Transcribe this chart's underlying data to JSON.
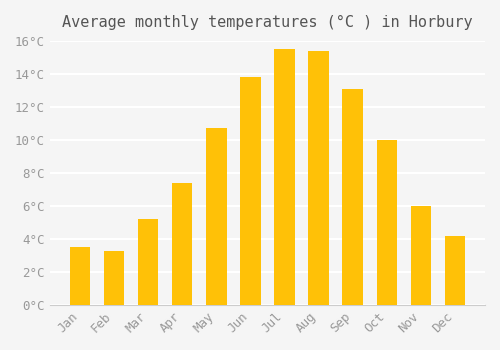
{
  "title": "Average monthly temperatures (°C ) in Horbury",
  "months": [
    "Jan",
    "Feb",
    "Mar",
    "Apr",
    "May",
    "Jun",
    "Jul",
    "Aug",
    "Sep",
    "Oct",
    "Nov",
    "Dec"
  ],
  "values": [
    3.5,
    3.3,
    5.2,
    7.4,
    10.7,
    13.8,
    15.5,
    15.4,
    13.1,
    10.0,
    6.0,
    4.2
  ],
  "bar_color_top": "#FFC107",
  "bar_color_bottom": "#FFB300",
  "ylim": [
    0,
    16
  ],
  "yticks": [
    0,
    2,
    4,
    6,
    8,
    10,
    12,
    14,
    16
  ],
  "ytick_labels": [
    "0°C",
    "2°C",
    "4°C",
    "6°C",
    "8°C",
    "10°C",
    "12°C",
    "14°C",
    "16°C"
  ],
  "background_color": "#f5f5f5",
  "grid_color": "#ffffff",
  "title_fontsize": 11,
  "tick_fontsize": 9,
  "bar_edge_color": "none"
}
